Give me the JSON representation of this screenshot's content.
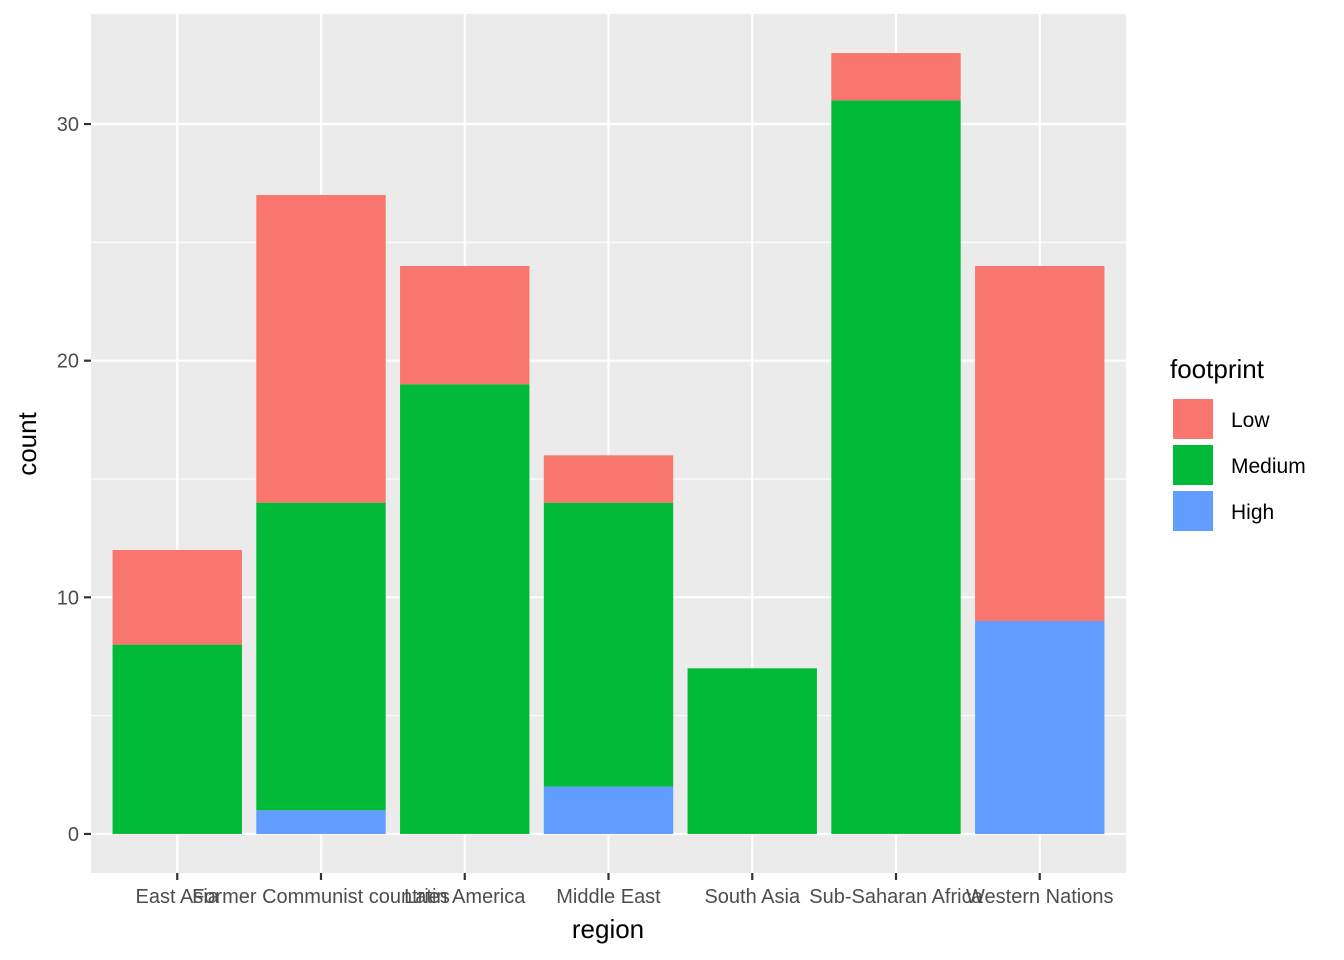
{
  "chart_data": {
    "type": "bar",
    "stacked": true,
    "xlabel": "region",
    "ylabel": "count",
    "categories": [
      "East Asia",
      "Former Communist countries",
      "Latin America",
      "Middle East",
      "South Asia",
      "Sub-Saharan Africa",
      "Western Nations"
    ],
    "series": [
      {
        "name": "High",
        "values": [
          0,
          1,
          0,
          2,
          0,
          0,
          9
        ],
        "color": "#619CFF"
      },
      {
        "name": "Medium",
        "values": [
          8,
          13,
          19,
          12,
          7,
          31,
          0
        ],
        "color": "#00BA38"
      },
      {
        "name": "Low",
        "values": [
          4,
          13,
          5,
          2,
          0,
          2,
          15
        ],
        "color": "#F8766D"
      }
    ],
    "ylim": [
      -1.65,
      34.65
    ],
    "yticks": [
      0,
      10,
      20,
      30
    ],
    "grid": true,
    "panel_background": "#EBEBEB",
    "legend": {
      "title": "footprint",
      "position": "right",
      "items": [
        "Low",
        "Medium",
        "High"
      ]
    }
  }
}
